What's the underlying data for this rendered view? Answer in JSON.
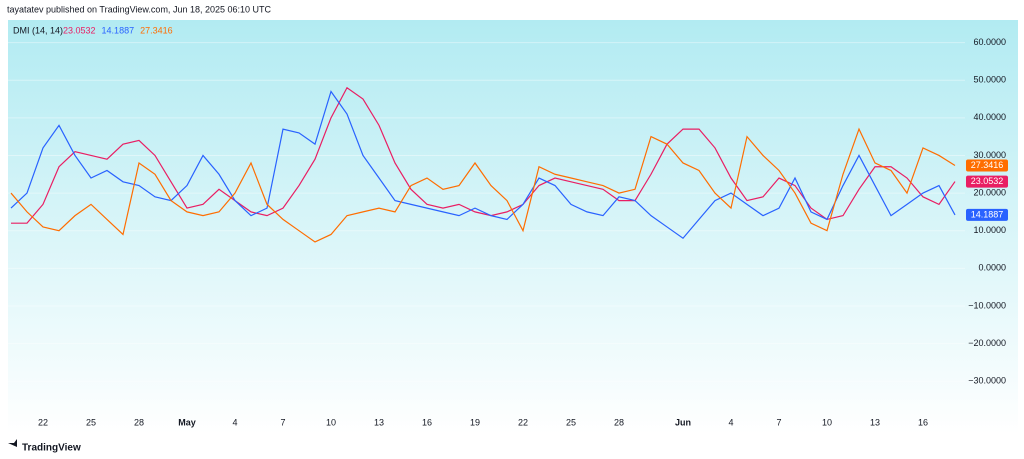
{
  "header": "tayatatev published on TradingView.com, Jun 18, 2025 06:10 UTC",
  "footer": "TradingView",
  "chart_data": {
    "type": "line",
    "title": "DMI (14, 14)",
    "categories": [
      null,
      null,
      "22",
      null,
      null,
      "25",
      null,
      null,
      "28",
      null,
      null,
      "May",
      null,
      null,
      "4",
      null,
      null,
      "7",
      null,
      null,
      "10",
      null,
      null,
      "13",
      null,
      null,
      "16",
      null,
      null,
      "19",
      null,
      null,
      "22",
      null,
      null,
      "25",
      null,
      null,
      "28",
      null,
      null,
      null,
      "Jun",
      null,
      null,
      "4",
      null,
      null,
      "7",
      null,
      null,
      "10",
      null,
      null,
      "13",
      null,
      null,
      "16",
      null,
      null
    ],
    "series": [
      {
        "color": "#e91e63",
        "value_label": "23.0532",
        "values": [
          12,
          12,
          17,
          27,
          31,
          30,
          29,
          33,
          34,
          30,
          23,
          16,
          17,
          21,
          18,
          15,
          14,
          16,
          22,
          29,
          40,
          48,
          45,
          38,
          28,
          21,
          17,
          16,
          17,
          15,
          14,
          15,
          17,
          22,
          24,
          23,
          22,
          21,
          18,
          18,
          25,
          33,
          37,
          37,
          32,
          24,
          18,
          19,
          24,
          22,
          16,
          13,
          14,
          21,
          27,
          27,
          24,
          19,
          17,
          23.0532
        ]
      },
      {
        "color": "#2962ff",
        "value_label": "14.1887",
        "values": [
          16,
          20,
          32,
          38,
          30,
          24,
          26,
          23,
          22,
          19,
          18,
          22,
          30,
          25,
          18,
          14,
          16,
          37,
          36,
          33,
          47,
          41,
          30,
          24,
          18,
          17,
          16,
          15,
          14,
          16,
          14,
          13,
          17,
          24,
          22,
          17,
          15,
          14,
          19,
          18,
          14,
          11,
          8,
          13,
          18,
          20,
          17,
          14,
          16,
          24,
          15,
          13,
          22,
          30,
          22,
          14,
          17,
          20,
          22,
          14.1887
        ]
      },
      {
        "color": "#ff6d00",
        "value_label": "27.3416",
        "values": [
          20,
          15,
          11,
          10,
          14,
          17,
          13,
          9,
          28,
          25,
          18,
          15,
          14,
          15,
          20,
          28,
          17,
          13,
          10,
          7,
          9,
          14,
          15,
          16,
          15,
          22,
          24,
          21,
          22,
          28,
          22,
          18,
          10,
          27,
          25,
          24,
          23,
          22,
          20,
          21,
          35,
          33,
          28,
          26,
          20,
          16,
          35,
          30,
          26,
          20,
          12,
          10,
          25,
          37,
          28,
          26,
          20,
          32,
          30,
          27.3416
        ]
      }
    ],
    "ylim": [
      -35,
      66
    ],
    "yticks": [
      {
        "value": 60,
        "label": "60.0000"
      },
      {
        "value": 50,
        "label": "50.0000"
      },
      {
        "value": 40,
        "label": "40.0000"
      },
      {
        "value": 30,
        "label": "30.0000"
      },
      {
        "value": 20,
        "label": "20.0000"
      },
      {
        "value": 10,
        "label": "10.0000"
      },
      {
        "value": 0,
        "label": "0.0000"
      },
      {
        "value": -10,
        "label": "−10.0000"
      },
      {
        "value": -20,
        "label": "−20.0000"
      },
      {
        "value": -30,
        "label": "−30.0000"
      }
    ]
  }
}
